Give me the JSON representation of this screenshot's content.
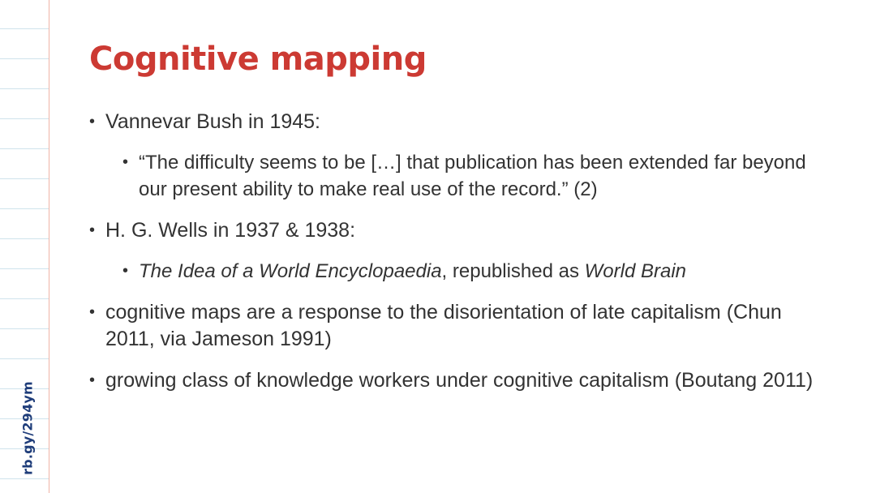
{
  "side_url": "rb.gy/294ym",
  "title": "Cognitive mapping",
  "bullets": {
    "b1": {
      "text": "Vannevar Bush in 1945:"
    },
    "b1a": {
      "text": "“The difficulty seems to be […] that publication has been extended far beyond our present ability to make real use of the record.” (2)"
    },
    "b2": {
      "text": "H. G. Wells in 1937 & 1938:"
    },
    "b2a": {
      "italic_1": "The Idea of a World Encyclopaedia",
      "plain": ", republished as ",
      "italic_2": "World Brain"
    },
    "b3": {
      "text": "cognitive maps are a response to the disorientation of late capitalism (Chun 2011, via Jameson 1991)"
    },
    "b4": {
      "text": "growing class of knowledge workers under cognitive capitalism (Boutang 2011)"
    }
  },
  "colors": {
    "title": "#cc3a33",
    "side_url": "#1f3d7a",
    "margin_line": "#f0b4a6",
    "ruled_lines": "#cfe3ec",
    "body_text": "#333333"
  }
}
